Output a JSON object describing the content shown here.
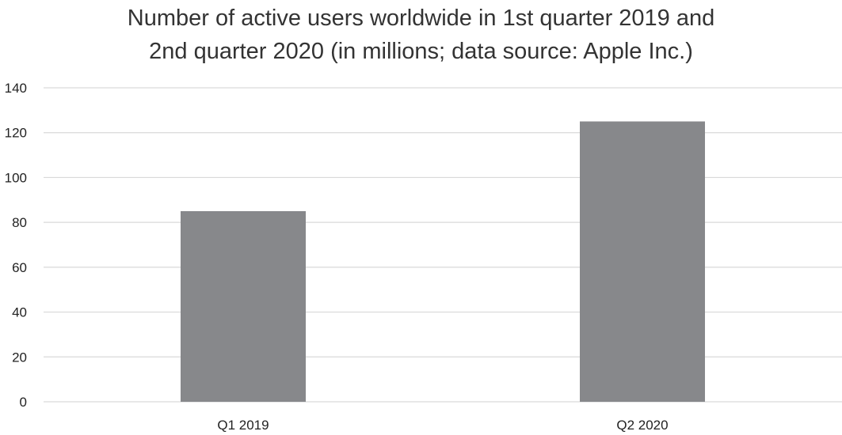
{
  "chart_data": {
    "type": "bar",
    "title_lines": [
      "Number of active users worldwide in 1st quarter 2019 and",
      "2nd quarter 2020 (in millions; data source: Apple Inc.)"
    ],
    "categories": [
      "Q1 2019",
      "Q2 2020"
    ],
    "values": [
      85,
      125
    ],
    "ylim": [
      0,
      140
    ],
    "yticks": [
      0,
      20,
      40,
      60,
      80,
      100,
      120,
      140
    ],
    "xlabel": "",
    "ylabel": "",
    "grid": true,
    "legend": "none",
    "bar_color": "#87888b",
    "grid_color": "#d9d9d9"
  }
}
